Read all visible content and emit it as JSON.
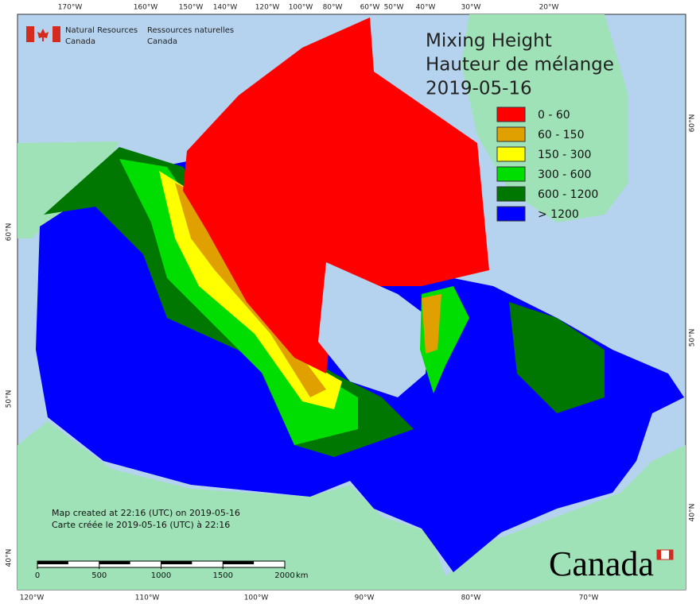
{
  "header": {
    "agency_en": [
      "Natural Resources",
      "Canada"
    ],
    "agency_fr": [
      "Ressources naturelles",
      "Canada"
    ]
  },
  "title": [
    "Mixing Height",
    "Hauteur de mélange",
    "2019-05-16"
  ],
  "legend": [
    {
      "label": "0 - 60",
      "color": "#ff0000"
    },
    {
      "label": "60 - 150",
      "color": "#e0a000"
    },
    {
      "label": "150 - 300",
      "color": "#ffff00"
    },
    {
      "label": "300 - 600",
      "color": "#00dd00"
    },
    {
      "label": "600 - 1200",
      "color": "#007700"
    },
    {
      "label": "> 1200",
      "color": "#0000ff"
    }
  ],
  "graticule": {
    "top": [
      "170°W",
      "160°W",
      "150°W",
      "140°W",
      "120°W",
      "100°W",
      "80°W",
      "60°W",
      "50°W",
      "40°W",
      "30°W",
      "20°W"
    ],
    "bottom": [
      "120°W",
      "110°W",
      "100°W",
      "90°W",
      "80°W",
      "70°W"
    ],
    "left": [
      "60°N",
      "50°N",
      "40°N"
    ],
    "right": [
      "60°N",
      "50°N",
      "40°N"
    ]
  },
  "credits": [
    "Map created at 22:16 (UTC) on 2019-05-16",
    "Carte créée le 2019-05-16 (UTC) à 22:16"
  ],
  "scale_bar": {
    "ticks": [
      0,
      500,
      1000,
      1500,
      2000
    ],
    "unit": "km"
  },
  "wordmark": "Canada"
}
